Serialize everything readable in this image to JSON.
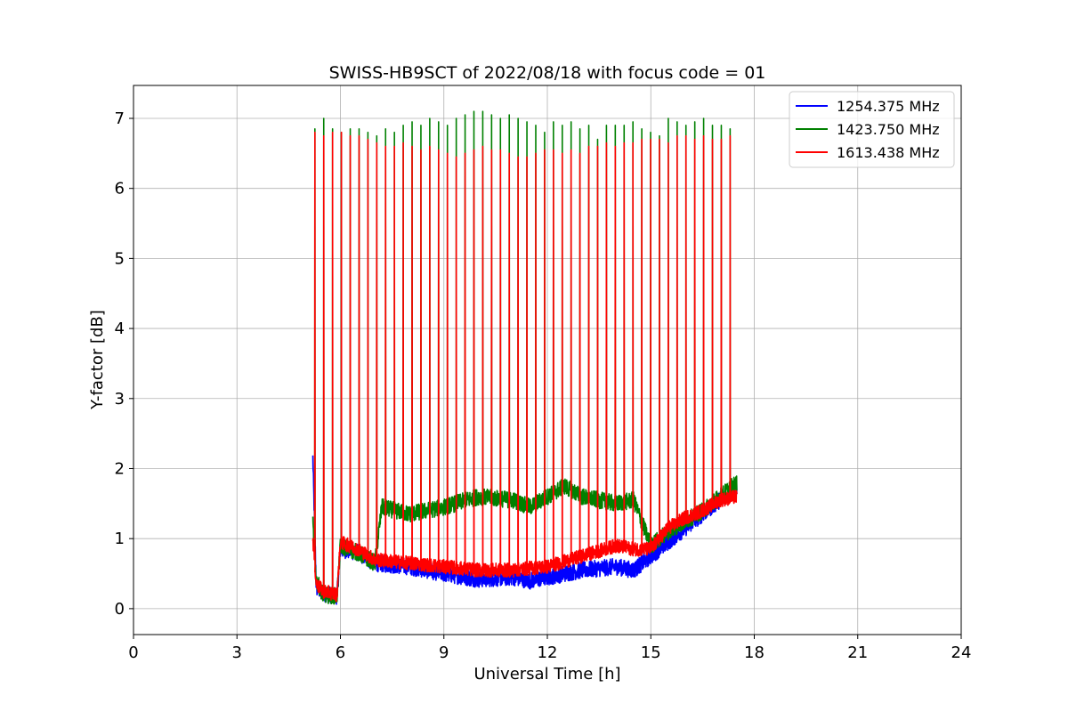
{
  "chart_data": {
    "type": "line",
    "title": "SWISS-HB9SCT of 2022/08/18 with focus code = 01",
    "xlabel": "Universal Time [h]",
    "ylabel": "Y-factor [dB]",
    "xlim": [
      0,
      24
    ],
    "ylim": [
      -0.37,
      7.47
    ],
    "xticks": [
      0,
      3,
      6,
      9,
      12,
      15,
      18,
      21,
      24
    ],
    "yticks": [
      0,
      1,
      2,
      3,
      4,
      5,
      6,
      7
    ],
    "grid": true,
    "legend_position": "top-right",
    "series": [
      {
        "name": "1254.375 MHz",
        "color": "#0000ff",
        "baseline_x": [
          5.2,
          5.3,
          5.5,
          5.9,
          6.0,
          6.5,
          7.0,
          8.0,
          9.0,
          10.0,
          11.0,
          11.5,
          12.0,
          13.0,
          14.0,
          14.5,
          15.0,
          15.5,
          16.0,
          16.5,
          17.0,
          17.5
        ],
        "baseline_y": [
          2.15,
          0.3,
          0.22,
          0.18,
          0.85,
          0.8,
          0.65,
          0.6,
          0.5,
          0.42,
          0.45,
          0.4,
          0.45,
          0.55,
          0.6,
          0.55,
          0.75,
          0.95,
          1.15,
          1.35,
          1.55,
          1.75
        ],
        "noise": 0.12
      },
      {
        "name": "1423.750 MHz",
        "color": "#008000",
        "baseline_x": [
          5.2,
          5.3,
          5.5,
          5.9,
          6.0,
          6.5,
          7.0,
          7.2,
          8.0,
          9.0,
          10.0,
          11.0,
          11.5,
          12.0,
          12.5,
          13.0,
          14.0,
          14.5,
          15.0,
          15.5,
          16.0,
          16.5,
          17.0,
          17.5
        ],
        "baseline_y": [
          1.2,
          0.4,
          0.2,
          0.18,
          0.9,
          0.8,
          0.65,
          1.45,
          1.35,
          1.45,
          1.6,
          1.55,
          1.45,
          1.6,
          1.75,
          1.6,
          1.5,
          1.55,
          0.9,
          1.1,
          1.25,
          1.4,
          1.6,
          1.8
        ],
        "noise": 0.12,
        "peaks": [
          6.85,
          7.0,
          6.85,
          6.8,
          6.85,
          6.85,
          6.8,
          6.75,
          6.85,
          6.8,
          6.9,
          6.95,
          6.9,
          7.0,
          6.95,
          6.9,
          7.0,
          7.05,
          7.1,
          7.1,
          7.05,
          7.0,
          7.05,
          7.0,
          6.95,
          6.9,
          6.8,
          6.95,
          6.9,
          6.95,
          6.85,
          6.9,
          6.7,
          6.9,
          6.9,
          6.9,
          6.95,
          6.85,
          6.8,
          6.75,
          7.0,
          6.95,
          6.9,
          6.95,
          7.0,
          6.9,
          6.9,
          6.85
        ]
      },
      {
        "name": "1613.438 MHz",
        "color": "#ff0000",
        "baseline_x": [
          5.2,
          5.3,
          5.5,
          5.9,
          6.0,
          6.5,
          7.0,
          8.0,
          9.0,
          10.0,
          11.0,
          11.5,
          12.0,
          13.0,
          14.0,
          14.5,
          15.0,
          15.5,
          16.0,
          16.5,
          17.0,
          17.5
        ],
        "baseline_y": [
          1.0,
          0.35,
          0.25,
          0.2,
          0.95,
          0.85,
          0.7,
          0.65,
          0.6,
          0.55,
          0.55,
          0.58,
          0.6,
          0.75,
          0.9,
          0.85,
          0.85,
          1.15,
          1.3,
          1.4,
          1.55,
          1.6
        ],
        "noise": 0.1,
        "pulse_start": 5.26,
        "pulse_end": 17.3,
        "pulse_count": 48,
        "peaks": [
          6.8,
          6.75,
          6.8,
          6.8,
          6.75,
          6.75,
          6.7,
          6.65,
          6.6,
          6.6,
          6.65,
          6.6,
          6.55,
          6.6,
          6.55,
          6.5,
          6.45,
          6.5,
          6.55,
          6.6,
          6.55,
          6.55,
          6.5,
          6.45,
          6.45,
          6.5,
          6.55,
          6.55,
          6.5,
          6.55,
          6.5,
          6.6,
          6.6,
          6.65,
          6.6,
          6.65,
          6.65,
          6.7,
          6.7,
          6.7,
          6.65,
          6.75,
          6.75,
          6.7,
          6.75,
          6.7,
          6.7,
          6.75
        ]
      }
    ]
  }
}
